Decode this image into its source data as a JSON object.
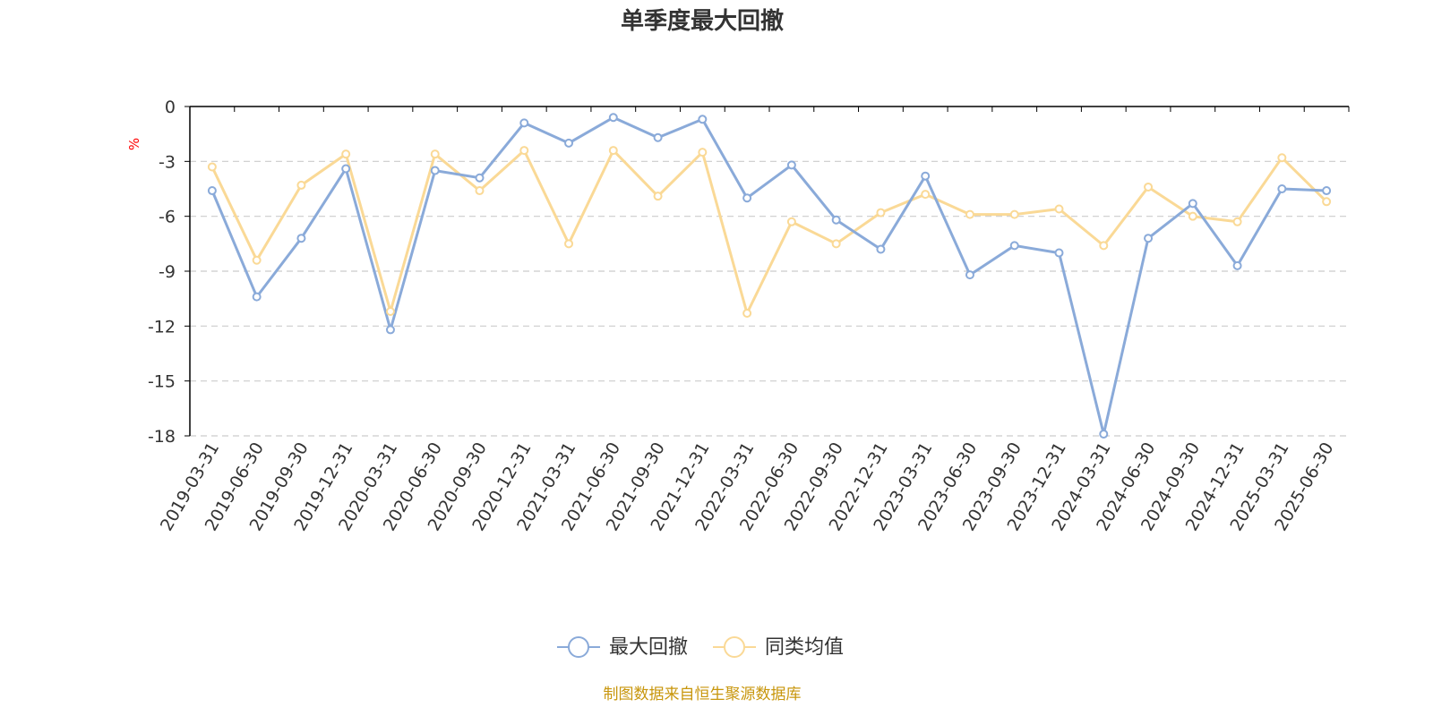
{
  "title": "单季度最大回撤",
  "source": "制图数据来自恒生聚源数据库",
  "colors": {
    "series1": "#8aaad9",
    "series2": "#fad996",
    "unit": "#ff0000",
    "source": "#c8960c",
    "grid": "#cccccc",
    "axis": "#000000"
  },
  "chart_data": {
    "type": "line",
    "title": "单季度最大回撤",
    "ylabel": "%",
    "ylim": [
      -18,
      0
    ],
    "yticks": [
      0,
      -3,
      -6,
      -9,
      -12,
      -15,
      -18
    ],
    "grid": "horizontal dashed",
    "legend_position": "bottom-center",
    "x": [
      "2019-03-31",
      "2019-06-30",
      "2019-09-30",
      "2019-12-31",
      "2020-03-31",
      "2020-06-30",
      "2020-09-30",
      "2020-12-31",
      "2021-03-31",
      "2021-06-30",
      "2021-09-30",
      "2021-12-31",
      "2022-03-31",
      "2022-06-30",
      "2022-09-30",
      "2022-12-31",
      "2023-03-31",
      "2023-06-30",
      "2023-09-30",
      "2023-12-31",
      "2024-03-31",
      "2024-06-30",
      "2024-09-30",
      "2024-12-31",
      "2025-03-31",
      "2025-06-30"
    ],
    "series": [
      {
        "name": "最大回撤",
        "values": [
          -4.6,
          -10.4,
          -7.2,
          -3.4,
          -12.2,
          -3.5,
          -3.9,
          -0.9,
          -2.0,
          -0.6,
          -1.7,
          -0.7,
          -5.0,
          -3.2,
          -6.2,
          -7.8,
          -3.8,
          -9.2,
          -7.6,
          -8.0,
          -17.9,
          -7.2,
          -5.3,
          -8.7,
          -4.5,
          -4.6
        ]
      },
      {
        "name": "同类均值",
        "values": [
          -3.3,
          -8.4,
          -4.3,
          -2.6,
          -11.2,
          -2.6,
          -4.6,
          -2.4,
          -7.5,
          -2.4,
          -4.9,
          -2.5,
          -11.3,
          -6.3,
          -7.5,
          -5.8,
          -4.8,
          -5.9,
          -5.9,
          -5.6,
          -7.6,
          -4.4,
          -6.0,
          -6.3,
          -2.8,
          -5.2
        ]
      }
    ]
  }
}
